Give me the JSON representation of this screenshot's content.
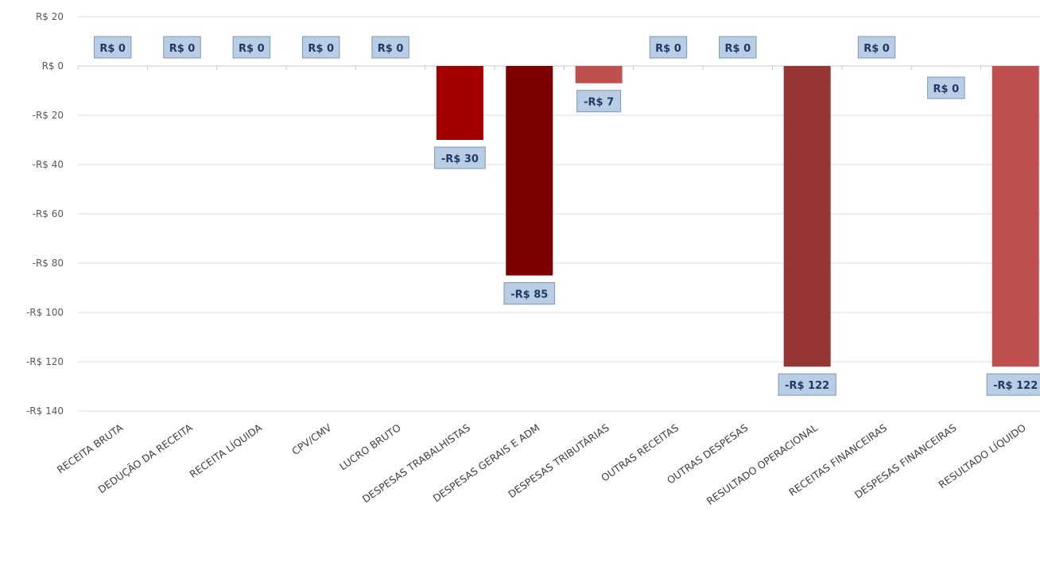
{
  "chart_data": {
    "type": "bar",
    "categories": [
      "RECEITA BRUTA",
      "DEDUÇÃO DA RECEITA",
      "RECEITA LÍQUIDA",
      "CPV/CMV",
      "LUCRO BRUTO",
      "DESPESAS TRABALHISTAS",
      "DESPESAS GERAIS E ADM",
      "DESPESAS TRIBUTÁRIAS",
      "OUTRAS RECEITAS",
      "OUTRAS DESPESAS",
      "RESULTADO OPERACIONAL",
      "RECEITAS FINANCEIRAS",
      "DESPESAS FINANCEIRAS",
      "RESULTADO LÍQUIDO"
    ],
    "values": [
      0,
      0,
      0,
      0,
      0,
      -30,
      -85,
      -7,
      0,
      0,
      -122,
      0,
      0,
      -122
    ],
    "data_labels": [
      "R$ 0",
      "R$ 0",
      "R$ 0",
      "R$ 0",
      "R$ 0",
      "-R$ 30",
      "-R$ 85",
      "-R$ 7",
      "R$ 0",
      "R$ 0",
      "-R$ 122",
      "R$ 0",
      "R$ 0",
      "-R$ 122"
    ],
    "colors": [
      "#a30000",
      "#a30000",
      "#a30000",
      "#a30000",
      "#a30000",
      "#a30000",
      "#7b0000",
      "#c0504d",
      "#a30000",
      "#a30000",
      "#963634",
      "#a30000",
      "#a30000",
      "#c0504d"
    ],
    "yticks": [
      20,
      0,
      -20,
      -40,
      -60,
      -80,
      -100,
      -120,
      -140
    ],
    "ytick_labels": [
      "R$ 20",
      "R$ 0",
      "-R$ 20",
      "-R$ 40",
      "-R$ 60",
      "-R$ 80",
      "-R$ 100",
      "-R$ 120",
      "-R$ 140"
    ],
    "ylim": [
      -140,
      20
    ],
    "grid": true,
    "title": "",
    "xlabel": "",
    "ylabel": ""
  }
}
